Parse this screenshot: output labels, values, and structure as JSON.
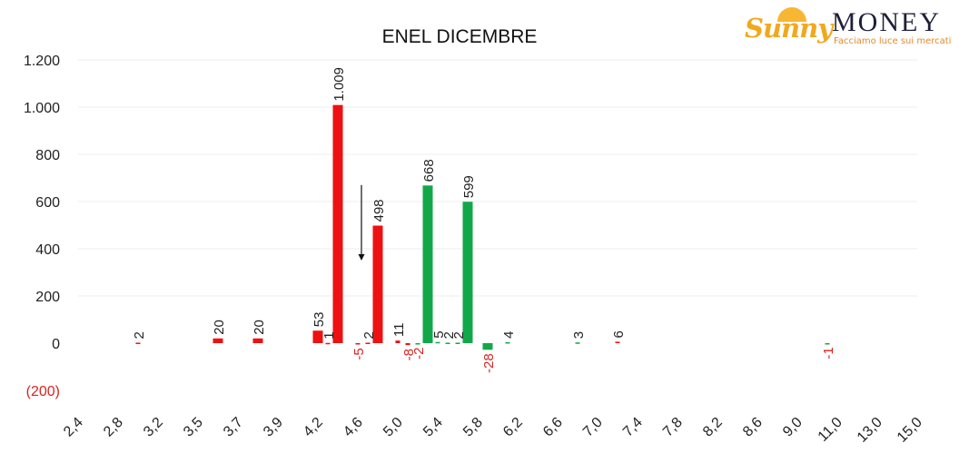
{
  "logo": {
    "brand_word_1": "Sunny",
    "brand_word_2": "MONEY",
    "tagline": "Facciamo luce sui mercati"
  },
  "colors": {
    "red": "#ee1111",
    "green": "#12a84a",
    "negative_label": "#dd2222",
    "text": "#222222",
    "logo_orange": "#f2a81d",
    "logo_navy": "#1f1f3a"
  },
  "chart_data": {
    "type": "bar",
    "title": "ENEL DICEMBRE",
    "xlabel": "",
    "ylabel": "",
    "ylim": [
      -200,
      1200
    ],
    "yticks": [
      {
        "value": 1200,
        "label": "1.200"
      },
      {
        "value": 1000,
        "label": "1.000"
      },
      {
        "value": 800,
        "label": "800"
      },
      {
        "value": 600,
        "label": "600"
      },
      {
        "value": 400,
        "label": "400"
      },
      {
        "value": 200,
        "label": "200"
      },
      {
        "value": 0,
        "label": "0"
      },
      {
        "value": -200,
        "label": "(200)"
      }
    ],
    "grid": true,
    "legend": "none",
    "categories": [
      "2,4",
      "2,8",
      "3,2",
      "3,5",
      "3,7",
      "3,9",
      "4,2",
      "4,6",
      "5,0",
      "5,4",
      "5,8",
      "6,2",
      "6,6",
      "7,0",
      "7,4",
      "7,8",
      "8,2",
      "8,6",
      "9,0",
      "11,0",
      "13,0",
      "15,0"
    ],
    "bars": [
      {
        "x": 1.5,
        "value": 2,
        "label": "2",
        "color": "red"
      },
      {
        "x": 3.5,
        "value": 20,
        "label": "20",
        "color": "red"
      },
      {
        "x": 4.5,
        "value": 20,
        "label": "20",
        "color": "red"
      },
      {
        "x": 6.0,
        "value": 53,
        "label": "53",
        "color": "red"
      },
      {
        "x": 6.25,
        "value": 1,
        "label": "1",
        "color": "red"
      },
      {
        "x": 6.5,
        "value": 1009,
        "label": "1.009",
        "color": "red"
      },
      {
        "x": 7.0,
        "value": -5,
        "label": "-5",
        "color": "red"
      },
      {
        "x": 7.25,
        "value": 2,
        "label": "2",
        "color": "red"
      },
      {
        "x": 7.5,
        "value": 498,
        "label": "498",
        "color": "red"
      },
      {
        "x": 8.0,
        "value": 11,
        "label": "11",
        "color": "red"
      },
      {
        "x": 8.25,
        "value": -8,
        "label": "-8",
        "color": "red"
      },
      {
        "x": 8.5,
        "value": -2,
        "label": "-2",
        "color": "green"
      },
      {
        "x": 8.75,
        "value": 668,
        "label": "668",
        "color": "green"
      },
      {
        "x": 9.0,
        "value": 5,
        "label": "5",
        "color": "green"
      },
      {
        "x": 9.25,
        "value": 2,
        "label": "2",
        "color": "green"
      },
      {
        "x": 9.5,
        "value": 2,
        "label": "2",
        "color": "green"
      },
      {
        "x": 9.75,
        "value": 599,
        "label": "599",
        "color": "green"
      },
      {
        "x": 10.25,
        "value": -28,
        "label": "-28",
        "color": "green"
      },
      {
        "x": 10.75,
        "value": 4,
        "label": "4",
        "color": "green"
      },
      {
        "x": 12.5,
        "value": 3,
        "label": "3",
        "color": "green"
      },
      {
        "x": 13.5,
        "value": 6,
        "label": "6",
        "color": "red"
      },
      {
        "x": 18.75,
        "value": -1,
        "label": "-1",
        "color": "green"
      }
    ],
    "annotations": [
      {
        "type": "arrow-down",
        "x": 7.0,
        "from": 670,
        "to": 350
      }
    ]
  }
}
